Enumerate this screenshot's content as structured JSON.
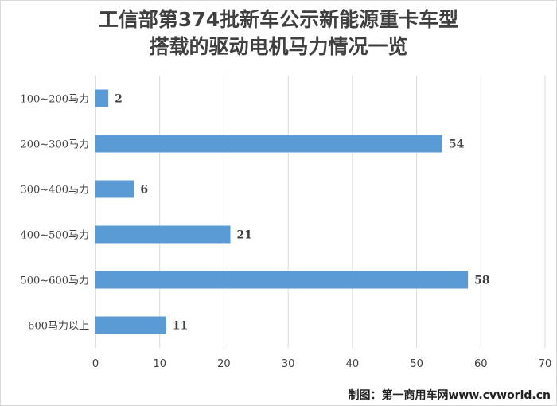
{
  "chart_data": {
    "type": "bar",
    "orientation": "horizontal",
    "title_lines": [
      "工信部第374批新车公示新能源重卡车型",
      "搭载的驱动电机马力情况一览"
    ],
    "categories": [
      "100~200马力",
      "200~300马力",
      "300~400马力",
      "400~500马力",
      "500~600马力",
      "600马力以上"
    ],
    "values": [
      2,
      54,
      6,
      21,
      58,
      11
    ],
    "xlim": [
      0,
      70
    ],
    "x_ticks": [
      0,
      10,
      20,
      30,
      40,
      50,
      60,
      70
    ],
    "grid": true,
    "bar_color": "#5b9bd5"
  },
  "footer": "制图：第一商用车网www.cvworld.cn"
}
